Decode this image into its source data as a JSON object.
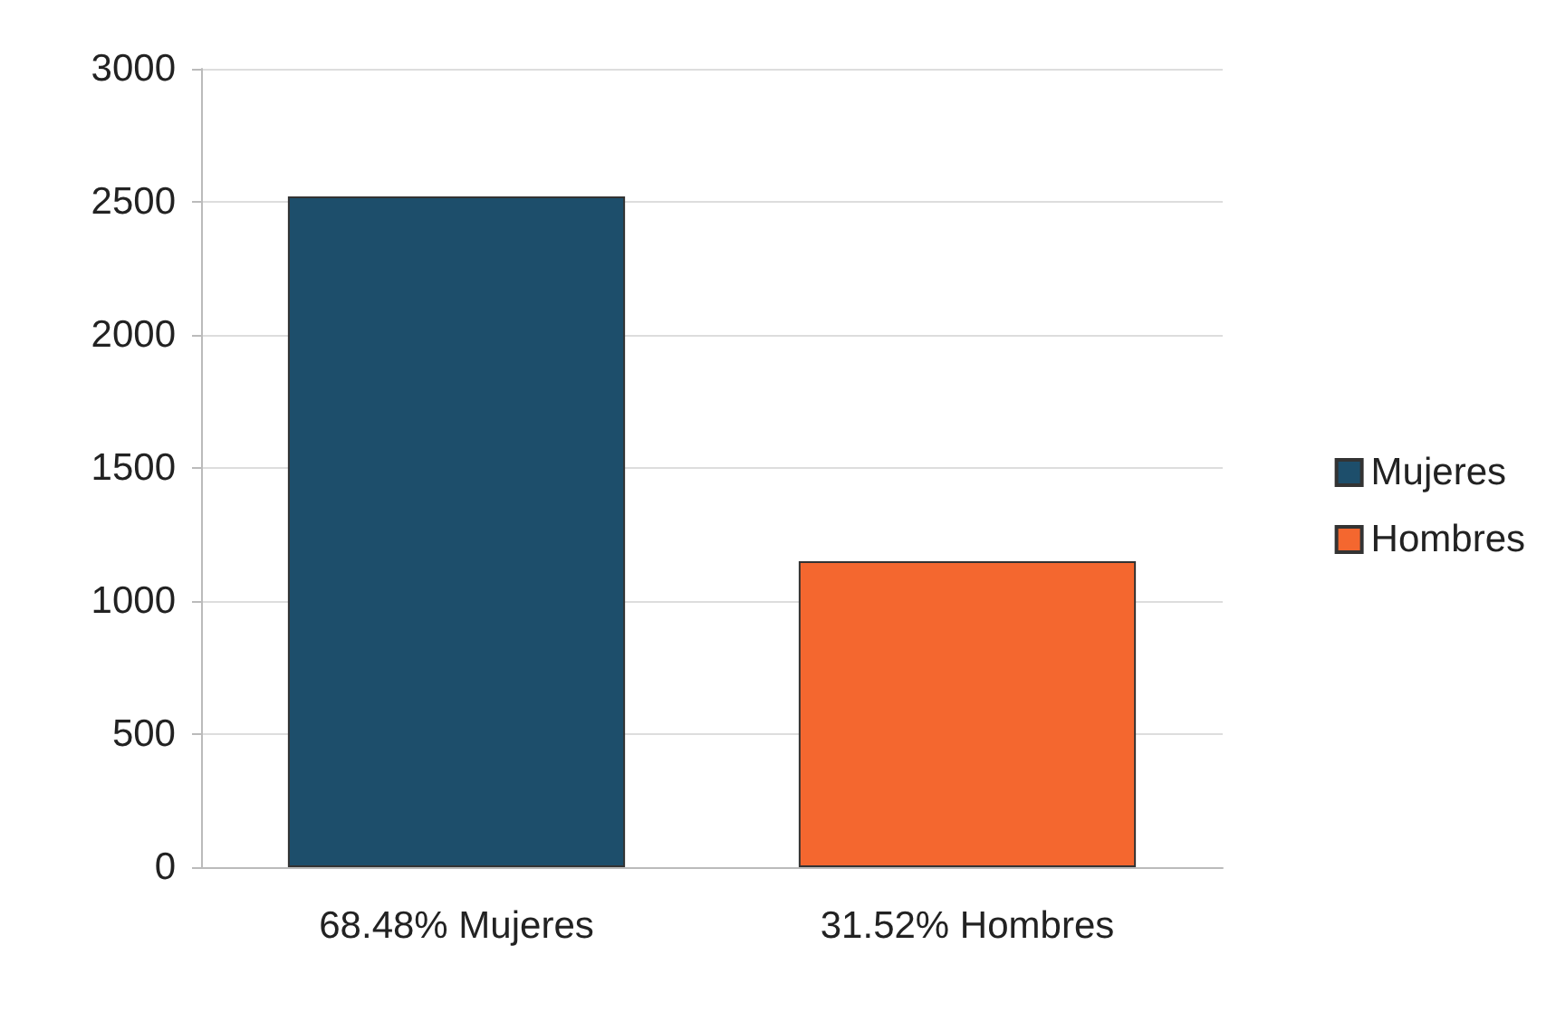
{
  "chart_data": {
    "type": "bar",
    "categories": [
      "68.48% Mujeres",
      "31.52% Hombres"
    ],
    "series": [
      {
        "name": "Mujeres",
        "color": "#1d4e6b",
        "values": [
          2520,
          null
        ]
      },
      {
        "name": "Hombres",
        "color": "#f4672f",
        "values": [
          null,
          1150
        ]
      }
    ],
    "ylim": [
      0,
      3000
    ],
    "yticks": [
      0,
      500,
      1000,
      1500,
      2000,
      2500,
      3000
    ],
    "grid": "y",
    "legend": "right"
  }
}
